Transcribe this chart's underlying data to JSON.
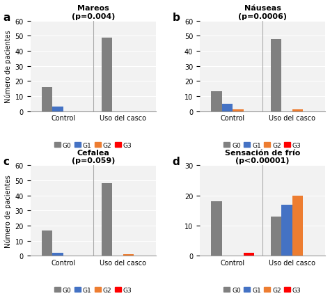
{
  "panels": [
    {
      "label": "a",
      "title": "Mareos\n(p=0.004)",
      "ylim": [
        0,
        60
      ],
      "yticks": [
        0,
        10,
        20,
        30,
        40,
        50,
        60
      ],
      "groups": [
        "Control",
        "Uso del casco"
      ],
      "values": {
        "G0": [
          16,
          49
        ],
        "G1": [
          3,
          0
        ],
        "G2": [
          0,
          0
        ],
        "G3": [
          0,
          0
        ]
      }
    },
    {
      "label": "b",
      "title": "Náuseas\n(p=0.0006)",
      "ylim": [
        0,
        60
      ],
      "yticks": [
        0,
        10,
        20,
        30,
        40,
        50,
        60
      ],
      "groups": [
        "Control",
        "Uso del casco"
      ],
      "values": {
        "G0": [
          13,
          48
        ],
        "G1": [
          5,
          0
        ],
        "G2": [
          1,
          1
        ],
        "G3": [
          0,
          0
        ]
      }
    },
    {
      "label": "c",
      "title": "Cefalea\n(p=0.059)",
      "ylim": [
        0,
        60
      ],
      "yticks": [
        0,
        10,
        20,
        30,
        40,
        50,
        60
      ],
      "groups": [
        "Control",
        "Uso del casco"
      ],
      "values": {
        "G0": [
          17,
          48
        ],
        "G1": [
          2,
          0
        ],
        "G2": [
          0,
          1
        ],
        "G3": [
          0,
          0
        ]
      }
    },
    {
      "label": "d",
      "title": "Sensación de frío\n(p<0.00001)",
      "ylim": [
        0,
        30
      ],
      "yticks": [
        0,
        10,
        20,
        30
      ],
      "groups": [
        "Control",
        "Uso del casco"
      ],
      "values": {
        "G0": [
          18,
          13
        ],
        "G1": [
          0,
          17
        ],
        "G2": [
          0,
          20
        ],
        "G3": [
          1,
          0
        ]
      }
    }
  ],
  "colors": {
    "G0": "#808080",
    "G1": "#4472C4",
    "G2": "#ED7D31",
    "G3": "#FF0000"
  },
  "ylabel": "Número de pacientes",
  "bar_width": 0.18,
  "legend_labels": [
    "G0",
    "G1",
    "G2",
    "G3"
  ],
  "background_color": "#FFFFFF",
  "panel_bg": "#F2F2F2"
}
